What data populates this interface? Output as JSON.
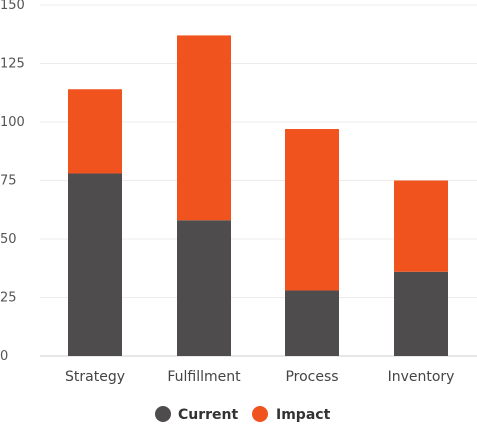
{
  "chart_data": {
    "type": "bar",
    "stacked": true,
    "categories": [
      "Strategy",
      "Fulfillment",
      "Process",
      "Inventory"
    ],
    "series": [
      {
        "name": "Current",
        "color": "#4f4c4d",
        "values": [
          78,
          58,
          28,
          36
        ]
      },
      {
        "name": "Impact",
        "color": "#f1531f",
        "values": [
          36,
          79,
          69,
          39
        ]
      }
    ],
    "ylim": [
      0,
      150
    ],
    "yticks": [
      "0",
      "25",
      "50",
      "75",
      "100",
      "125",
      "150"
    ],
    "grid": true,
    "legend": "bottom-center"
  }
}
